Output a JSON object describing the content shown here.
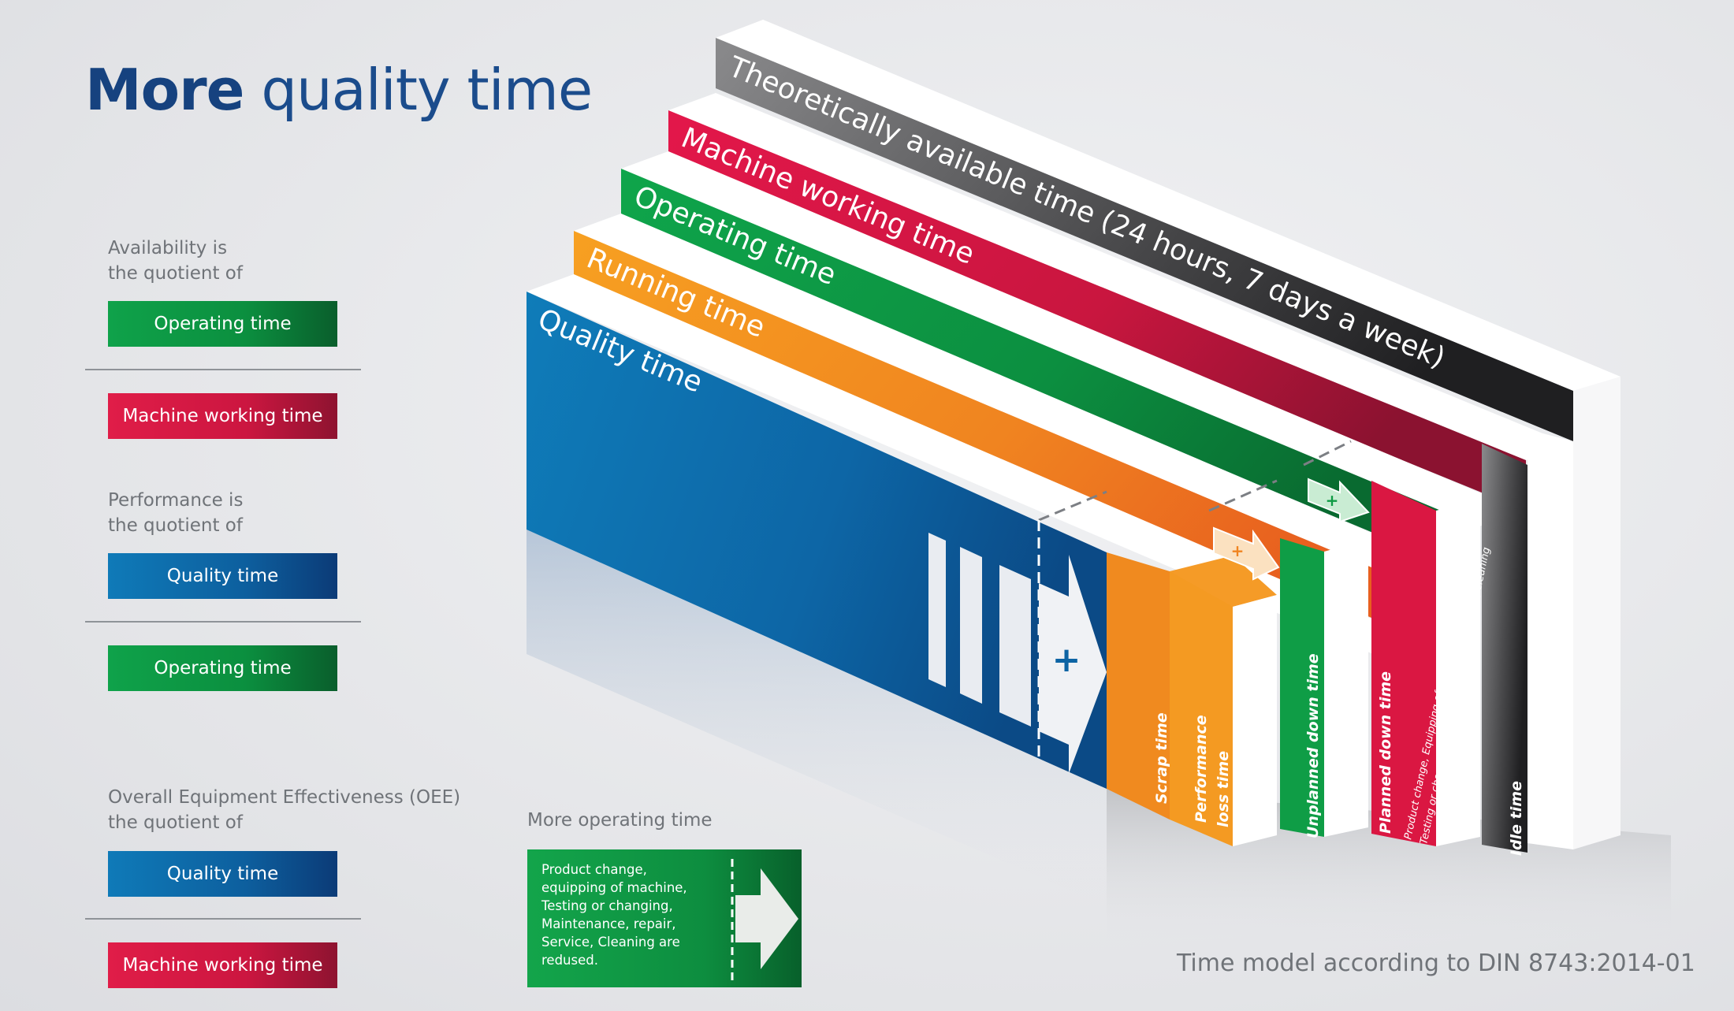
{
  "title": {
    "bold": "More",
    "rest": " quality time"
  },
  "legend": {
    "availability": {
      "line1": "Availability is",
      "line2": "the quotient of",
      "numerator": "Operating time",
      "denominator": "Machine working time"
    },
    "performance": {
      "line1": "Performance is",
      "line2": "the quotient of",
      "numerator": "Quality time",
      "denominator": "Operating time"
    },
    "oee": {
      "line1": "Overall Equipment Effectiveness (OEE)",
      "line2": "the quotient of",
      "numerator": "Quality time",
      "denominator": "Machine working time"
    }
  },
  "layers": {
    "theoretical": "Theoretically available time (24 hours, 7 days a week)",
    "machine_working": "Machine working time",
    "operating": "Operating time",
    "running": "Running time",
    "quality": "Quality time"
  },
  "loss_blocks": {
    "scrap": "Scrap time",
    "performance_loss_1": "Performance",
    "performance_loss_2": "loss time",
    "unplanned": "Unplanned down time",
    "planned": "Planned down time",
    "planned_detail_1": "Product change, Equipping of the machine,",
    "planned_detail_2": "Testing or changing, Maintenance, repair, Service, cleaning",
    "idle": "Idle time"
  },
  "plus_sign": "+",
  "more_operating": {
    "label": "More operating time",
    "text": "Product change,\nequipping of machine,\nTesting or changing,\nMaintenance, repair,\nService, Cleaning are\nredused."
  },
  "footer": "Time model according to DIN 8743:2014-01",
  "colors": {
    "title": "#1b4c8c",
    "blue": "#0d68a8",
    "orange": "#f18a1e",
    "green": "#0e9a44",
    "red": "#d8163f",
    "gray": "#4e4e50",
    "text_gray": "#6f7378"
  }
}
